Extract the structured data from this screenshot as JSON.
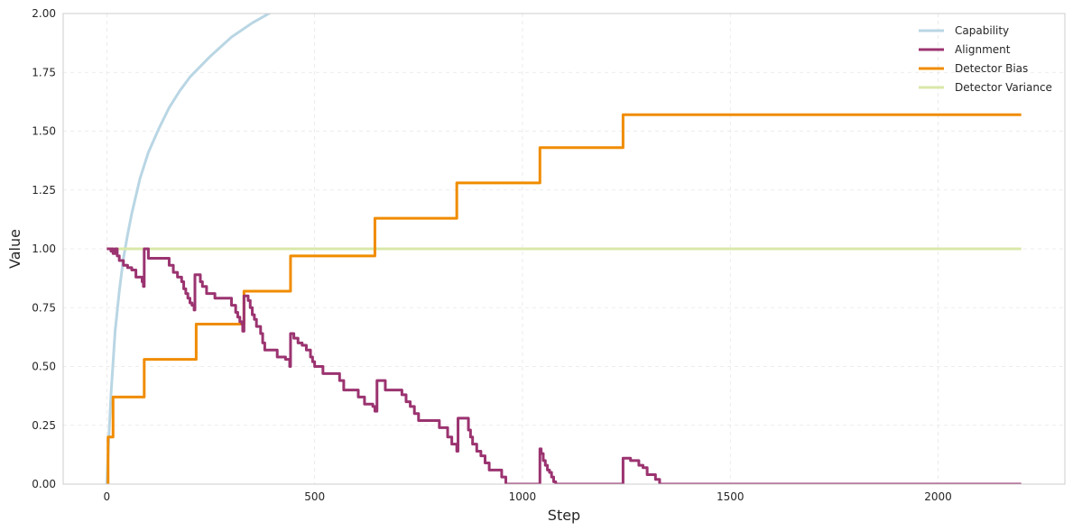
{
  "chart_data": {
    "type": "line",
    "xlabel": "Step",
    "ylabel": "Value",
    "xlim": [
      -105,
      2305
    ],
    "ylim": [
      0,
      2
    ],
    "x_ticks": [
      0,
      500,
      1000,
      1500,
      2000
    ],
    "y_ticks": [
      0,
      0.25,
      0.5,
      0.75,
      1.0,
      1.25,
      1.5,
      1.75,
      2.0
    ],
    "y_tick_labels": [
      "0.00",
      "0.25",
      "0.50",
      "0.75",
      "1.00",
      "1.25",
      "1.50",
      "1.75",
      "2.00"
    ],
    "grid": true,
    "legend_position": "top-right",
    "series": [
      {
        "name": "Capability",
        "color": "#b9d6e4",
        "kind": "curve",
        "x": [
          0,
          5,
          10,
          20,
          30,
          40,
          50,
          60,
          80,
          100,
          125,
          150,
          175,
          200,
          250,
          300,
          350,
          400
        ],
        "values": [
          0.0,
          0.2,
          0.38,
          0.65,
          0.82,
          0.96,
          1.06,
          1.15,
          1.3,
          1.41,
          1.51,
          1.6,
          1.67,
          1.73,
          1.82,
          1.9,
          1.96,
          2.01
        ]
      },
      {
        "name": "Alignment",
        "color": "#9b3370",
        "kind": "step",
        "x": [
          0,
          10,
          12,
          15,
          20,
          25,
          30,
          40,
          50,
          60,
          70,
          80,
          85,
          88,
          90,
          100,
          120,
          150,
          160,
          170,
          180,
          185,
          190,
          195,
          200,
          205,
          210,
          212,
          215,
          225,
          230,
          240,
          260,
          290,
          300,
          310,
          315,
          320,
          325,
          327,
          330,
          340,
          345,
          350,
          355,
          360,
          370,
          375,
          380,
          400,
          410,
          430,
          440,
          442,
          450,
          460,
          470,
          480,
          490,
          495,
          500,
          510,
          520,
          550,
          560,
          570,
          590,
          600,
          605,
          610,
          620,
          640,
          645,
          650,
          665,
          670,
          700,
          710,
          720,
          730,
          740,
          750,
          770,
          790,
          800,
          820,
          830,
          840,
          842,
          845,
          850,
          865,
          870,
          875,
          880,
          890,
          900,
          910,
          920,
          940,
          950,
          960,
          1040,
          1042,
          1045,
          1050,
          1055,
          1060,
          1065,
          1070,
          1075,
          1080,
          1090,
          1240,
          1242,
          1260,
          1280,
          1290,
          1300,
          1320,
          1330,
          2200
        ],
        "values": [
          1.0,
          0.99,
          1.0,
          0.98,
          1.0,
          0.97,
          0.95,
          0.93,
          0.92,
          0.91,
          0.88,
          0.88,
          0.86,
          0.84,
          1.0,
          0.96,
          0.96,
          0.93,
          0.9,
          0.88,
          0.86,
          0.83,
          0.81,
          0.79,
          0.77,
          0.76,
          0.74,
          0.89,
          0.89,
          0.86,
          0.84,
          0.81,
          0.79,
          0.79,
          0.76,
          0.73,
          0.71,
          0.69,
          0.68,
          0.65,
          0.8,
          0.78,
          0.75,
          0.72,
          0.7,
          0.67,
          0.64,
          0.6,
          0.57,
          0.57,
          0.54,
          0.53,
          0.5,
          0.64,
          0.62,
          0.6,
          0.59,
          0.57,
          0.54,
          0.52,
          0.5,
          0.5,
          0.47,
          0.47,
          0.44,
          0.4,
          0.4,
          0.4,
          0.37,
          0.37,
          0.34,
          0.33,
          0.31,
          0.44,
          0.44,
          0.4,
          0.4,
          0.38,
          0.35,
          0.33,
          0.3,
          0.27,
          0.27,
          0.27,
          0.24,
          0.2,
          0.17,
          0.17,
          0.14,
          0.28,
          0.28,
          0.28,
          0.23,
          0.2,
          0.17,
          0.14,
          0.12,
          0.09,
          0.06,
          0.06,
          0.03,
          0.0,
          0.0,
          0.15,
          0.13,
          0.1,
          0.08,
          0.06,
          0.05,
          0.03,
          0.01,
          0.0,
          0.0,
          0.0,
          0.11,
          0.1,
          0.08,
          0.07,
          0.04,
          0.02,
          0.0,
          0.0
        ]
      },
      {
        "name": "Detector Bias",
        "color": "#f08c00",
        "kind": "step",
        "x": [
          0,
          3,
          15,
          90,
          215,
          330,
          442,
          645,
          842,
          1042,
          1242,
          2200
        ],
        "values": [
          0.0,
          0.2,
          0.37,
          0.53,
          0.68,
          0.82,
          0.97,
          1.13,
          1.28,
          1.43,
          1.57,
          1.57
        ]
      },
      {
        "name": "Detector Variance",
        "color": "#d9e8a8",
        "kind": "curve",
        "x": [
          0,
          2200
        ],
        "values": [
          1.0,
          1.0
        ]
      }
    ]
  }
}
